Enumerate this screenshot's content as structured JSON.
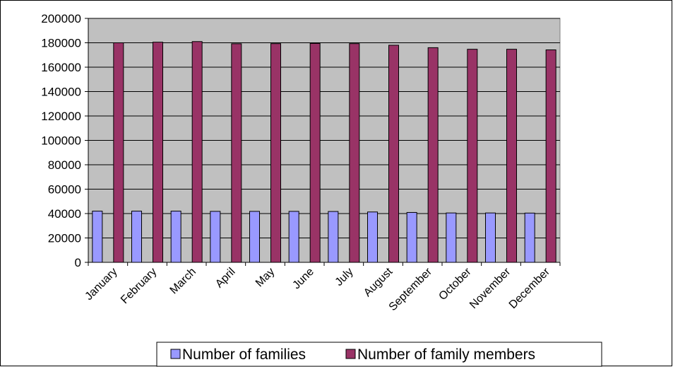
{
  "chart_data": {
    "type": "bar",
    "title": "",
    "xlabel": "",
    "ylabel": "",
    "categories": [
      "January",
      "February",
      "March",
      "April",
      "May",
      "June",
      "July",
      "August",
      "September",
      "October",
      "November",
      "December"
    ],
    "series": [
      {
        "name": "Number of families",
        "color": "#9999ff",
        "values": [
          42000,
          42000,
          42000,
          41800,
          41800,
          41800,
          41700,
          41300,
          40900,
          40500,
          40500,
          40400
        ]
      },
      {
        "name": "Number of family members",
        "color": "#993366",
        "values": [
          180000,
          180500,
          181000,
          179200,
          179300,
          179500,
          179300,
          178000,
          176000,
          174700,
          174700,
          174200
        ]
      }
    ],
    "ylim": [
      0,
      200000
    ],
    "yticks": [
      "0",
      "20000",
      "40000",
      "60000",
      "80000",
      "100000",
      "120000",
      "140000",
      "160000",
      "180000",
      "200000"
    ],
    "grid": true,
    "plot_background": "#c0c0c0",
    "legend_position": "bottom"
  }
}
